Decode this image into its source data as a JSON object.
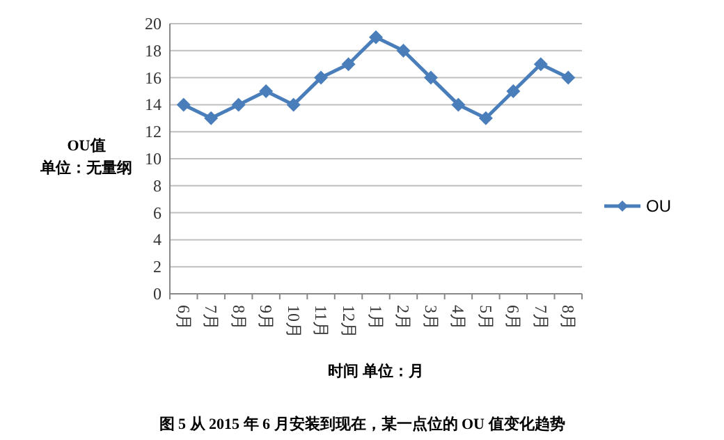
{
  "chart_data": {
    "type": "line",
    "xlabel": "时间 单位：月",
    "ylabel": "OU值",
    "categories": [
      "6月",
      "7月",
      "8月",
      "9月",
      "10月",
      "11月",
      "12月",
      "1月",
      "2月",
      "3月",
      "4月",
      "5月",
      "6月",
      "7月",
      "8月"
    ],
    "series": [
      {
        "name": "OU",
        "color": "#4a7ebb",
        "values": [
          14,
          13,
          14,
          15,
          14,
          16,
          17,
          19,
          18,
          16,
          14,
          13,
          15,
          17,
          16
        ]
      }
    ],
    "ylim": [
      0,
      20
    ],
    "yticks": [
      0,
      2,
      4,
      6,
      8,
      10,
      12,
      14,
      16,
      18,
      20
    ],
    "grid": "y",
    "legend": "right",
    "marker": "diamond",
    "line_style": "solid",
    "annotations": [
      "单位：无量纲",
      "图 5 从 2015 年 6 月安装到现在，某一点位的 OU 值变化趋势"
    ]
  }
}
